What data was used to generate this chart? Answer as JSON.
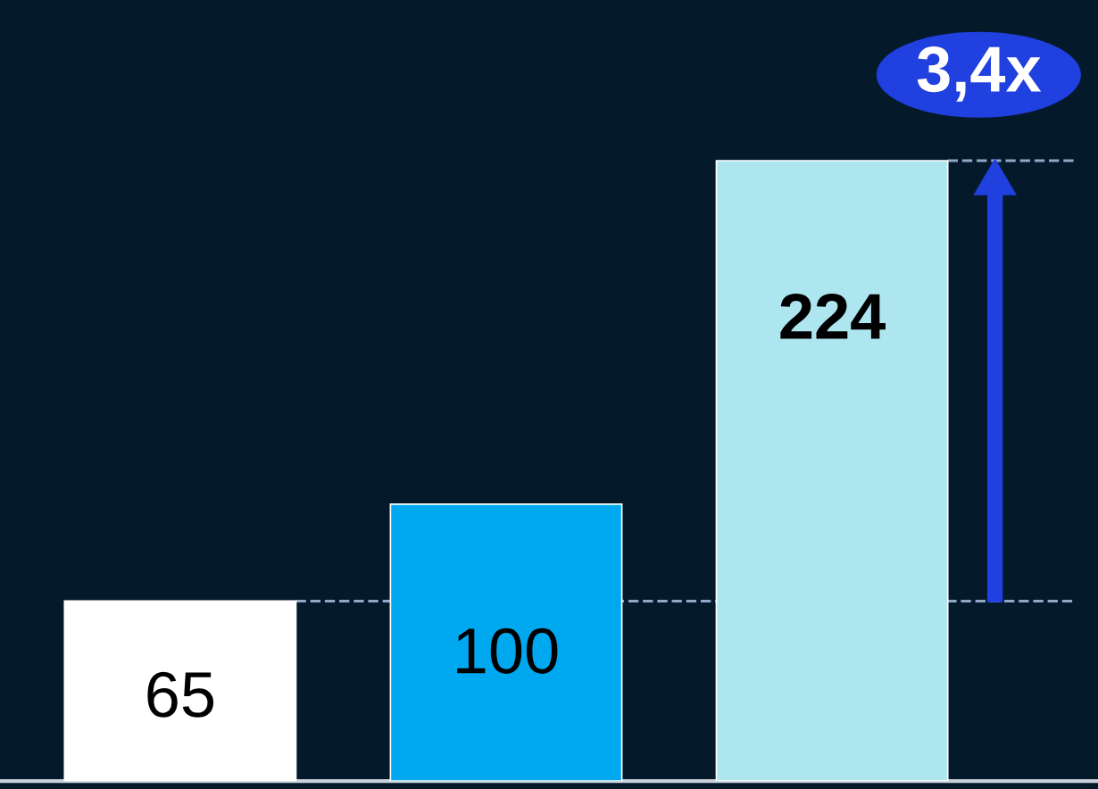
{
  "chart_data": {
    "type": "bar",
    "categories": [
      null,
      null,
      null
    ],
    "values": [
      65,
      100,
      224
    ],
    "colors": [
      "#ffffff",
      "#00a8f0",
      "#aee6f0"
    ],
    "ylim": [
      0,
      282
    ],
    "data_labels": true,
    "ref_lines": [
      {
        "axis": "y",
        "value": 65,
        "line_style": "dashed",
        "color": "#8fa8c8"
      },
      {
        "axis": "y",
        "value": 224,
        "line_style": "dashed",
        "color": "#8fa8c8"
      }
    ],
    "annotations": [
      "3,4x"
    ],
    "grid": false
  }
}
